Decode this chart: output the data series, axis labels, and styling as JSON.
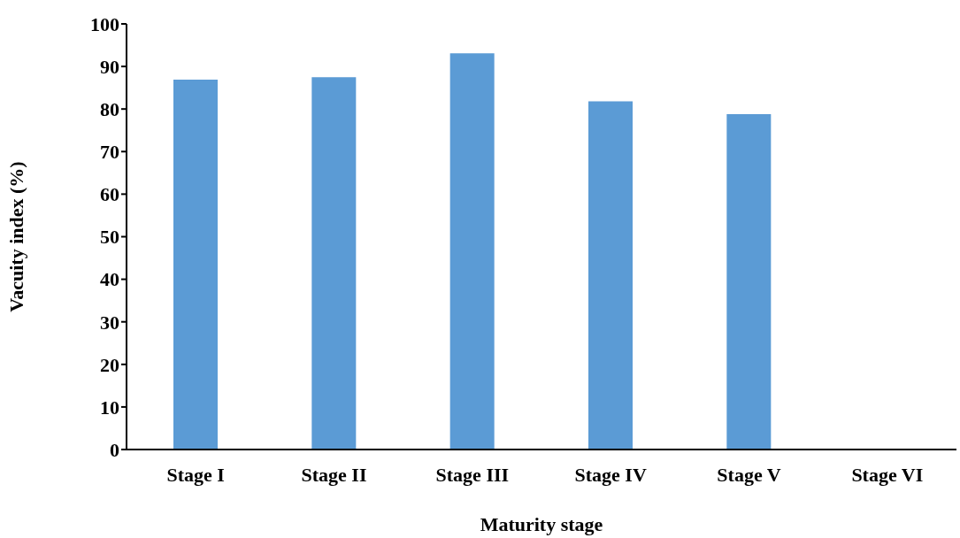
{
  "chart_data": {
    "type": "bar",
    "xlabel": "Maturity stage",
    "ylabel": "Vacuity index (%)",
    "categories": [
      "Stage I",
      "Stage II",
      "Stage III",
      "Stage IV",
      "Stage V",
      "Stage VI"
    ],
    "values": [
      86.9,
      87.5,
      93.1,
      81.8,
      78.8,
      0
    ],
    "color": "#5b9bd5",
    "ylim": [
      0,
      100
    ],
    "yticks": [
      0,
      10,
      20,
      30,
      40,
      50,
      60,
      70,
      80,
      90,
      100
    ],
    "grid": false
  }
}
